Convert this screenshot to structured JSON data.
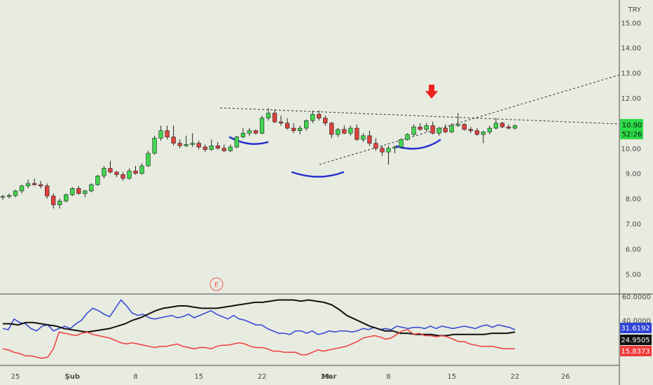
{
  "chart_data": {
    "type": "candlestick",
    "currency": "TRY",
    "price_axis": {
      "ticks": [
        "15.00",
        "14.00",
        "13.00",
        "12.00",
        "11.00",
        "10.00",
        "9.00",
        "8.00",
        "7.00",
        "6.00",
        "5.00"
      ],
      "ylim": [
        4.2,
        15.9
      ]
    },
    "indicator_axis": {
      "ticks": [
        "60.0000",
        "40.0000"
      ],
      "ylim": [
        2,
        62
      ]
    },
    "x_axis": {
      "ticks": [
        {
          "label": "25",
          "idx": 2
        },
        {
          "label": "Şub",
          "idx": 11
        },
        {
          "label": "8",
          "idx": 21
        },
        {
          "label": "15",
          "idx": 31
        },
        {
          "label": "22",
          "idx": 41
        },
        {
          "label": "29",
          "idx": 51
        },
        {
          "label": "Mar",
          "idx": 51.6
        },
        {
          "label": "8",
          "idx": 61
        },
        {
          "label": "15",
          "idx": 71
        },
        {
          "label": "22",
          "idx": 81
        },
        {
          "label": "26",
          "idx": 89
        }
      ],
      "bar_count_visible": 96
    },
    "candles": [
      [
        8.05,
        8.15,
        7.95,
        8.08
      ],
      [
        8.08,
        8.2,
        8.0,
        8.12
      ],
      [
        8.12,
        8.35,
        8.05,
        8.3
      ],
      [
        8.3,
        8.55,
        8.2,
        8.5
      ],
      [
        8.5,
        8.75,
        8.4,
        8.6
      ],
      [
        8.6,
        8.8,
        8.5,
        8.55
      ],
      [
        8.55,
        8.7,
        8.4,
        8.5
      ],
      [
        8.5,
        8.6,
        8.0,
        8.1
      ],
      [
        8.1,
        8.2,
        7.6,
        7.75
      ],
      [
        7.75,
        8.0,
        7.6,
        7.9
      ],
      [
        7.9,
        8.2,
        7.85,
        8.15
      ],
      [
        8.15,
        8.45,
        8.1,
        8.4
      ],
      [
        8.4,
        8.5,
        8.15,
        8.2
      ],
      [
        8.2,
        8.35,
        8.05,
        8.3
      ],
      [
        8.3,
        8.6,
        8.25,
        8.55
      ],
      [
        8.55,
        8.95,
        8.5,
        8.9
      ],
      [
        8.9,
        9.3,
        8.8,
        9.2
      ],
      [
        9.2,
        9.5,
        9.0,
        9.05
      ],
      [
        9.05,
        9.1,
        8.85,
        8.95
      ],
      [
        8.95,
        9.05,
        8.7,
        8.8
      ],
      [
        8.8,
        9.2,
        8.75,
        9.1
      ],
      [
        9.1,
        9.3,
        8.95,
        9.0
      ],
      [
        9.0,
        9.4,
        8.95,
        9.3
      ],
      [
        9.3,
        9.9,
        9.25,
        9.8
      ],
      [
        9.8,
        10.5,
        9.75,
        10.4
      ],
      [
        10.4,
        10.9,
        10.3,
        10.7
      ],
      [
        10.7,
        10.9,
        10.35,
        10.45
      ],
      [
        10.45,
        10.9,
        10.1,
        10.2
      ],
      [
        10.2,
        10.35,
        10.0,
        10.1
      ],
      [
        10.1,
        10.5,
        10.05,
        10.15
      ],
      [
        10.15,
        10.6,
        10.05,
        10.2
      ],
      [
        10.2,
        10.3,
        9.95,
        10.05
      ],
      [
        10.05,
        10.15,
        9.85,
        9.95
      ],
      [
        9.95,
        10.35,
        9.9,
        10.1
      ],
      [
        10.1,
        10.25,
        9.95,
        10.0
      ],
      [
        10.0,
        10.15,
        9.85,
        9.9
      ],
      [
        9.9,
        10.15,
        9.85,
        10.05
      ],
      [
        10.05,
        10.5,
        10.0,
        10.45
      ],
      [
        10.45,
        10.8,
        10.4,
        10.6
      ],
      [
        10.6,
        10.8,
        10.5,
        10.7
      ],
      [
        10.7,
        10.75,
        10.55,
        10.6
      ],
      [
        10.6,
        11.3,
        10.55,
        11.2
      ],
      [
        11.2,
        11.6,
        11.1,
        11.4
      ],
      [
        11.4,
        11.55,
        11.0,
        11.05
      ],
      [
        11.05,
        11.3,
        10.9,
        11.0
      ],
      [
        11.0,
        11.2,
        10.75,
        10.8
      ],
      [
        10.8,
        11.0,
        10.6,
        10.7
      ],
      [
        10.7,
        10.9,
        10.55,
        10.8
      ],
      [
        10.8,
        11.15,
        10.7,
        11.1
      ],
      [
        11.1,
        11.5,
        11.0,
        11.35
      ],
      [
        11.35,
        11.5,
        11.1,
        11.2
      ],
      [
        11.2,
        11.3,
        10.9,
        11.0
      ],
      [
        11.0,
        11.05,
        10.4,
        10.55
      ],
      [
        10.55,
        10.8,
        10.45,
        10.75
      ],
      [
        10.75,
        10.9,
        10.55,
        10.6
      ],
      [
        10.6,
        10.9,
        10.5,
        10.8
      ],
      [
        10.8,
        10.95,
        10.3,
        10.35
      ],
      [
        10.35,
        10.6,
        10.25,
        10.5
      ],
      [
        10.5,
        10.7,
        10.1,
        10.2
      ],
      [
        10.2,
        10.4,
        9.9,
        10.0
      ],
      [
        10.0,
        10.1,
        9.7,
        9.85
      ],
      [
        9.85,
        10.1,
        9.35,
        10.0
      ],
      [
        10.0,
        10.1,
        9.8,
        10.05
      ],
      [
        10.05,
        10.4,
        10.0,
        10.35
      ],
      [
        10.35,
        10.6,
        10.3,
        10.55
      ],
      [
        10.55,
        10.95,
        10.5,
        10.85
      ],
      [
        10.85,
        11.0,
        10.7,
        10.75
      ],
      [
        10.75,
        11.0,
        10.65,
        10.9
      ],
      [
        10.9,
        11.05,
        10.55,
        10.6
      ],
      [
        10.6,
        10.85,
        10.5,
        10.8
      ],
      [
        10.8,
        10.95,
        10.6,
        10.65
      ],
      [
        10.65,
        11.0,
        10.6,
        10.9
      ],
      [
        10.9,
        11.4,
        10.85,
        10.95
      ],
      [
        10.95,
        11.0,
        10.7,
        10.75
      ],
      [
        10.75,
        10.85,
        10.6,
        10.7
      ],
      [
        10.7,
        10.8,
        10.5,
        10.55
      ],
      [
        10.55,
        10.7,
        10.2,
        10.65
      ],
      [
        10.65,
        10.9,
        10.55,
        10.8
      ],
      [
        10.8,
        11.2,
        10.75,
        11.0
      ],
      [
        11.0,
        11.05,
        10.8,
        10.85
      ],
      [
        10.85,
        10.95,
        10.75,
        10.8
      ],
      [
        10.8,
        10.95,
        10.75,
        10.9
      ]
    ],
    "last_price_label": "10.90",
    "countdown_label": "52:26",
    "indicator_labels": [
      "31.6192",
      "24.9505",
      "15.8373"
    ],
    "series": [
      {
        "color": "#2f43d6",
        "values": [
          33,
          32,
          41,
          38,
          37,
          33,
          31,
          35,
          36,
          31,
          33,
          35,
          33,
          37,
          40,
          46,
          50,
          48,
          45,
          43,
          50,
          57,
          52,
          46,
          44,
          45,
          42,
          41,
          42,
          43,
          44,
          42,
          43,
          45,
          42,
          44,
          46,
          48,
          45,
          43,
          41,
          44,
          41,
          40,
          38,
          36,
          36,
          33,
          31,
          29,
          29,
          28,
          31,
          31,
          29,
          31,
          28,
          29,
          31,
          30,
          31,
          31,
          30,
          31,
          33,
          32,
          34,
          32,
          33,
          32,
          35,
          34,
          33,
          34,
          34,
          33,
          35,
          33,
          35,
          34,
          33,
          34,
          35,
          34,
          33,
          35,
          36,
          34,
          36,
          35,
          34,
          32
        ]
      },
      {
        "color": "#111111",
        "values": [
          37,
          37,
          36,
          38,
          38,
          37,
          36,
          35,
          33,
          32,
          31,
          30,
          31,
          32,
          33,
          35,
          37,
          40,
          42,
          45,
          48,
          50,
          51,
          52,
          52,
          51,
          50,
          50,
          50,
          51,
          52,
          53,
          54,
          55,
          55,
          56,
          57,
          57,
          57,
          56,
          57,
          56,
          55,
          53,
          49,
          44,
          41,
          38,
          35,
          33,
          31,
          31,
          29,
          29,
          28,
          28,
          28,
          27,
          27,
          28,
          28,
          28,
          28,
          28,
          29,
          29,
          29,
          30
        ]
      },
      {
        "color": "#ef3b3b",
        "values": [
          16,
          15,
          13,
          12,
          10,
          10,
          9,
          8,
          9,
          16,
          30,
          29,
          28,
          27,
          29,
          30,
          28,
          27,
          26,
          25,
          23,
          21,
          20,
          21,
          20,
          19,
          18,
          17,
          18,
          18,
          19,
          20,
          18,
          17,
          16,
          17,
          17,
          16,
          18,
          19,
          19,
          20,
          21,
          20,
          18,
          17,
          17,
          16,
          14,
          14,
          13,
          13,
          13,
          11,
          11,
          13,
          15,
          14,
          15,
          16,
          17,
          18,
          20,
          22,
          25,
          26,
          27,
          26,
          24,
          25,
          28,
          31,
          32,
          28,
          29,
          27,
          27,
          26,
          27,
          26,
          24,
          22,
          22,
          20,
          19,
          18,
          18,
          18,
          17,
          16,
          16,
          16
        ]
      }
    ],
    "annotation_marker": "E"
  }
}
